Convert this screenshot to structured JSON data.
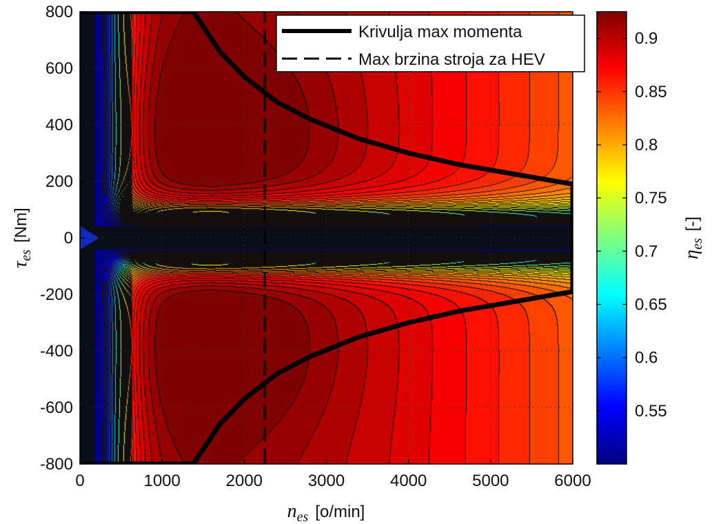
{
  "chart_data": {
    "type": "contour",
    "xlabel": {
      "symbol": "n",
      "subscript": "es",
      "unit": "[o/min]"
    },
    "ylabel": {
      "symbol": "τ",
      "subscript": "es",
      "unit": "[Nm]"
    },
    "colorbar_label": {
      "symbol": "η",
      "subscript": "es",
      "unit": "[-]"
    },
    "xlim": [
      0,
      6000
    ],
    "ylim": [
      -800,
      800
    ],
    "x_ticks": [
      0,
      1000,
      2000,
      3000,
      4000,
      5000,
      6000
    ],
    "y_ticks": [
      800,
      600,
      400,
      200,
      0,
      -200,
      -400,
      -600,
      -800
    ],
    "colorbar_range": [
      0.5,
      0.925
    ],
    "colorbar_ticks": [
      0.9,
      0.85,
      0.8,
      0.75,
      0.7,
      0.65,
      0.6,
      0.55
    ],
    "grid": "dotted",
    "legend_position": "top-right",
    "series": [
      {
        "name": "Krivulja max momenta",
        "style": "solid",
        "x": [
          0,
          1380,
          1700,
          2000,
          2400,
          2800,
          3400,
          4000,
          4600,
          5200,
          5600,
          6000,
          6000,
          5600,
          5200,
          4600,
          4000,
          3400,
          2800,
          2400,
          2000,
          1700,
          1380,
          0
        ],
        "y": [
          800,
          800,
          660,
          570,
          480,
          420,
          350,
          300,
          260,
          230,
          210,
          190,
          -190,
          -210,
          -230,
          -260,
          -300,
          -350,
          -420,
          -480,
          -570,
          -660,
          -800,
          -800
        ]
      },
      {
        "name": "Max brzina stroja za HEV",
        "style": "dashed",
        "x": [
          2250,
          2250
        ],
        "y": [
          -800,
          800
        ]
      }
    ],
    "contour_note_levels": [
      0.55,
      0.6,
      0.65,
      0.7,
      0.75,
      0.8,
      0.85,
      0.86,
      0.87,
      0.88,
      0.89,
      0.9,
      0.91,
      0.92
    ]
  },
  "colors": {
    "colormap": [
      "#00007f",
      "#0000ff",
      "#007fff",
      "#00ffff",
      "#7fff7f",
      "#ffff00",
      "#ff7f00",
      "#ff0000",
      "#7f0000"
    ],
    "curve": "#000000",
    "core": "#0a0e16"
  }
}
